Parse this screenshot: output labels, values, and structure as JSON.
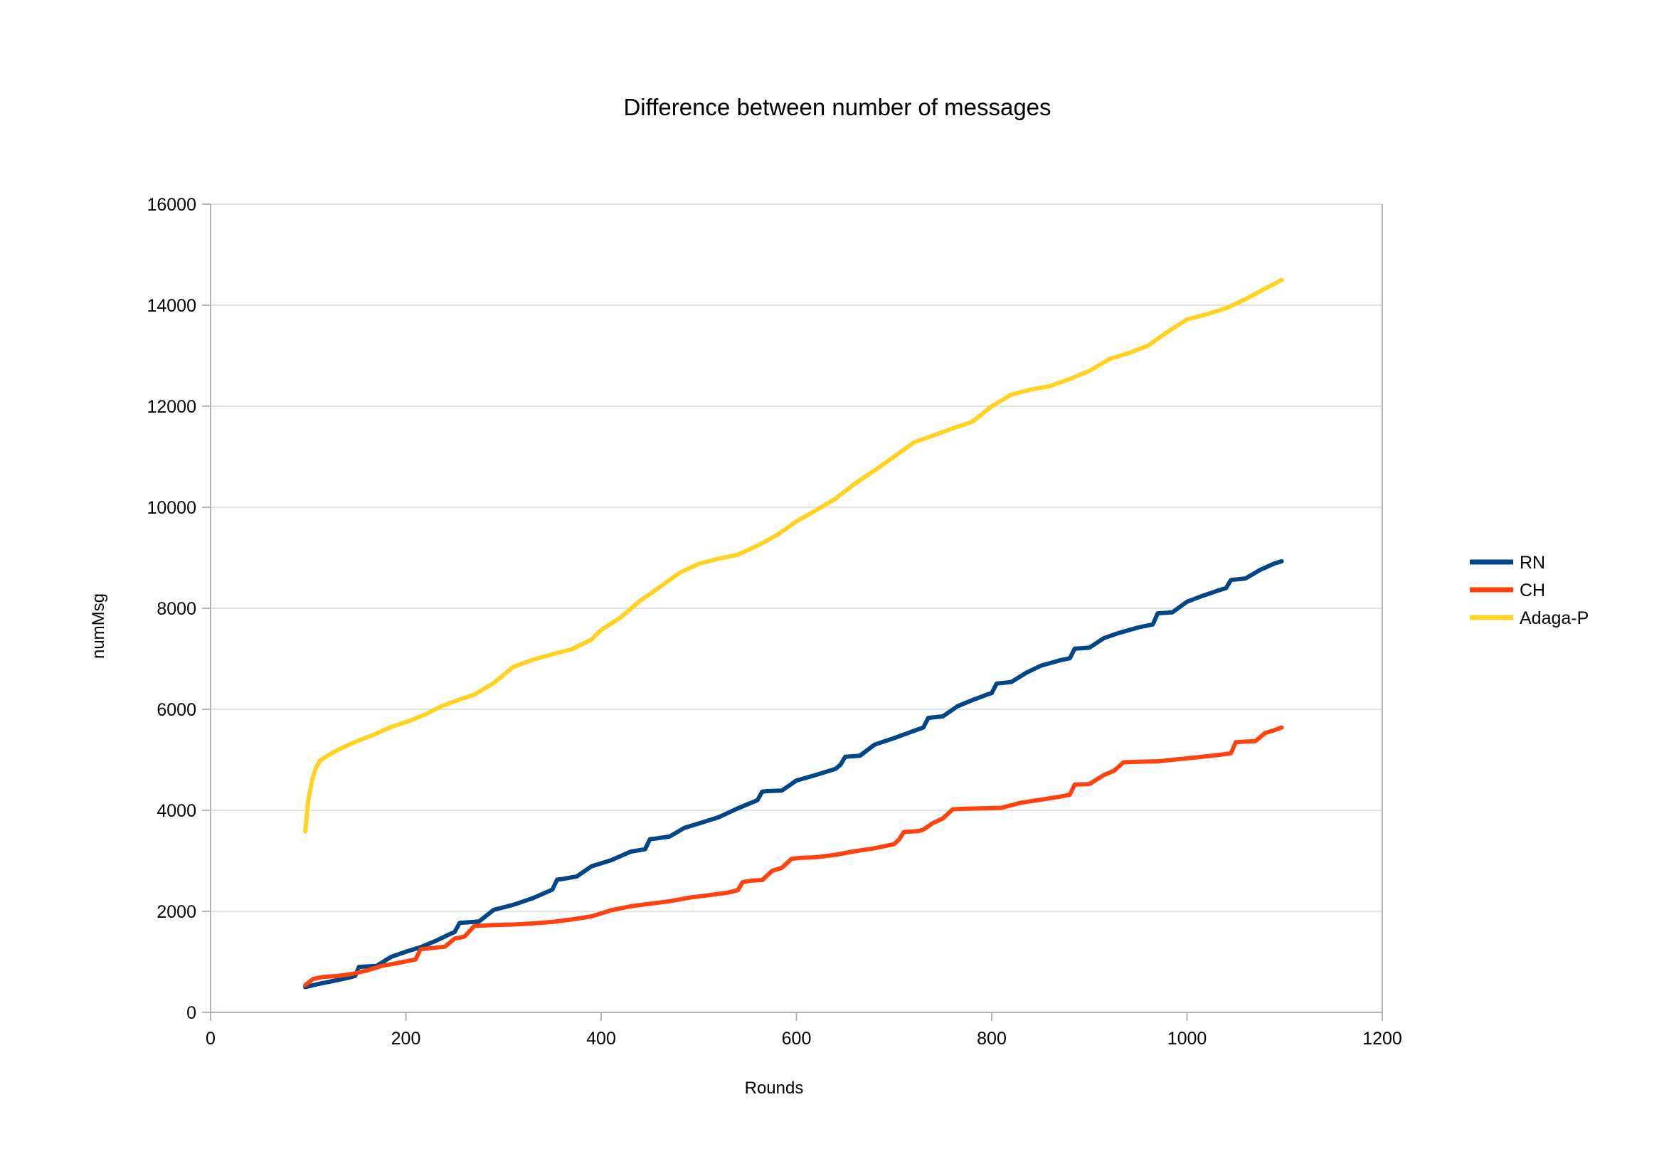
{
  "chart_data": {
    "type": "line",
    "title": "Difference between number of messages",
    "xlabel": "Rounds",
    "ylabel": "numMsg",
    "xlim": [
      0,
      1200
    ],
    "ylim": [
      0,
      16000
    ],
    "xticks": [
      0,
      200,
      400,
      600,
      800,
      1000,
      1200
    ],
    "yticks": [
      0,
      2000,
      4000,
      6000,
      8000,
      10000,
      12000,
      14000,
      16000
    ],
    "xtick_labels": [
      "0",
      "200",
      "400",
      "600",
      "800",
      "1000",
      "1200"
    ],
    "ytick_labels": [
      "0",
      "2000",
      "4000",
      "6000",
      "8000",
      "10000",
      "12000",
      "14000",
      "16000"
    ],
    "grid": "horizontal",
    "legend_position": "right",
    "series": [
      {
        "name": "RN",
        "color": "#004586",
        "x": [
          97,
          110,
          125,
          140,
          148,
          152,
          170,
          185,
          200,
          215,
          230,
          245,
          250,
          255,
          275,
          290,
          310,
          330,
          350,
          355,
          360,
          375,
          390,
          410,
          430,
          445,
          450,
          455,
          470,
          485,
          500,
          520,
          540,
          560,
          565,
          570,
          585,
          600,
          620,
          640,
          645,
          650,
          665,
          680,
          700,
          720,
          730,
          735,
          750,
          765,
          780,
          795,
          800,
          805,
          820,
          835,
          850,
          870,
          880,
          885,
          900,
          915,
          930,
          950,
          965,
          970,
          985,
          1000,
          1015,
          1030,
          1040,
          1045,
          1060,
          1075,
          1090,
          1097
        ],
        "y": [
          500,
          560,
          620,
          680,
          720,
          900,
          920,
          1100,
          1200,
          1290,
          1410,
          1550,
          1590,
          1770,
          1800,
          2030,
          2130,
          2260,
          2430,
          2630,
          2640,
          2690,
          2890,
          3010,
          3180,
          3230,
          3430,
          3440,
          3480,
          3650,
          3740,
          3860,
          4040,
          4200,
          4370,
          4380,
          4390,
          4590,
          4700,
          4820,
          4900,
          5060,
          5080,
          5300,
          5430,
          5570,
          5640,
          5830,
          5860,
          6060,
          6180,
          6290,
          6320,
          6510,
          6540,
          6720,
          6860,
          6970,
          7010,
          7200,
          7220,
          7410,
          7510,
          7620,
          7680,
          7900,
          7920,
          8130,
          8240,
          8340,
          8400,
          8560,
          8590,
          8760,
          8890,
          8930
        ]
      },
      {
        "name": "CH",
        "color": "#ff420e",
        "x": [
          97,
          105,
          115,
          130,
          145,
          160,
          175,
          190,
          205,
          210,
          215,
          225,
          240,
          250,
          260,
          270,
          290,
          310,
          330,
          350,
          370,
          390,
          410,
          430,
          450,
          470,
          490,
          510,
          530,
          540,
          545,
          555,
          565,
          575,
          585,
          595,
          605,
          620,
          640,
          660,
          680,
          700,
          705,
          710,
          725,
          730,
          740,
          750,
          760,
          770,
          790,
          810,
          830,
          850,
          870,
          880,
          885,
          900,
          915,
          925,
          935,
          950,
          970,
          990,
          1010,
          1030,
          1045,
          1050,
          1060,
          1070,
          1080,
          1090,
          1097
        ],
        "y": [
          540,
          660,
          700,
          720,
          760,
          830,
          920,
          970,
          1030,
          1050,
          1250,
          1270,
          1300,
          1460,
          1500,
          1710,
          1730,
          1740,
          1760,
          1790,
          1840,
          1900,
          2020,
          2100,
          2150,
          2200,
          2270,
          2320,
          2370,
          2420,
          2580,
          2610,
          2620,
          2800,
          2860,
          3040,
          3060,
          3070,
          3120,
          3190,
          3250,
          3330,
          3420,
          3570,
          3590,
          3620,
          3750,
          3840,
          4020,
          4030,
          4040,
          4050,
          4150,
          4210,
          4270,
          4310,
          4510,
          4520,
          4700,
          4780,
          4950,
          4960,
          4970,
          5010,
          5050,
          5090,
          5130,
          5350,
          5360,
          5370,
          5530,
          5590,
          5640
        ]
      },
      {
        "name": "Adaga-P",
        "color": "#ffd320",
        "x": [
          97,
          100,
          104,
          108,
          112,
          118,
          125,
          135,
          150,
          165,
          185,
          205,
          220,
          235,
          250,
          270,
          290,
          310,
          330,
          350,
          370,
          390,
          400,
          420,
          440,
          460,
          480,
          500,
          520,
          540,
          560,
          580,
          600,
          620,
          640,
          660,
          680,
          700,
          720,
          740,
          760,
          780,
          800,
          820,
          840,
          860,
          880,
          900,
          920,
          940,
          960,
          980,
          1000,
          1020,
          1040,
          1060,
          1080,
          1097
        ],
        "y": [
          3580,
          4200,
          4600,
          4850,
          4980,
          5060,
          5140,
          5240,
          5370,
          5480,
          5650,
          5780,
          5900,
          6050,
          6160,
          6290,
          6520,
          6840,
          6980,
          7090,
          7190,
          7380,
          7570,
          7820,
          8150,
          8420,
          8700,
          8880,
          8980,
          9060,
          9240,
          9450,
          9720,
          9940,
          10170,
          10470,
          10730,
          11000,
          11280,
          11420,
          11560,
          11690,
          12000,
          12230,
          12330,
          12400,
          12540,
          12700,
          12930,
          13050,
          13200,
          13470,
          13720,
          13820,
          13940,
          14120,
          14330,
          14500
        ]
      }
    ]
  }
}
